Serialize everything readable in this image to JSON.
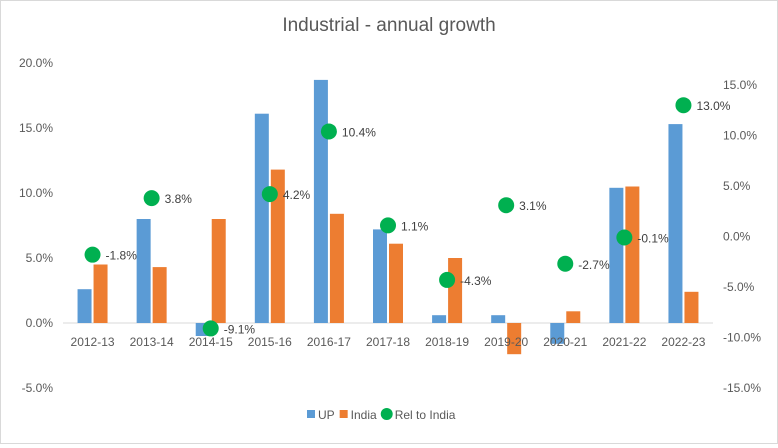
{
  "chart_data": {
    "type": "bar",
    "title": "Industrial - annual growth",
    "xlabel": "",
    "ylabel": "",
    "categories": [
      "2012-13",
      "2013-14",
      "2014-15",
      "2015-16",
      "2016-17",
      "2017-18",
      "2018-19",
      "2019-20",
      "2020-21",
      "2021-22",
      "2022-23"
    ],
    "series": [
      {
        "name": "UP",
        "type": "bar",
        "axis": "left",
        "color": "#5b9bd5",
        "values": [
          2.6,
          8.0,
          -1.0,
          16.1,
          18.7,
          7.2,
          0.6,
          0.6,
          -1.6,
          10.4,
          15.3
        ]
      },
      {
        "name": "India",
        "type": "bar",
        "axis": "left",
        "color": "#ed7d31",
        "values": [
          4.5,
          4.3,
          8.0,
          11.8,
          8.4,
          6.1,
          5.0,
          -2.4,
          0.9,
          10.5,
          2.4
        ]
      },
      {
        "name": "Rel to India",
        "type": "scatter",
        "axis": "right",
        "color": "#00b050",
        "values": [
          -1.8,
          3.8,
          -9.1,
          4.2,
          10.4,
          1.1,
          -4.3,
          3.1,
          -2.7,
          -0.1,
          13.0
        ],
        "labels": [
          "-1.8%",
          "3.8%",
          "-9.1%",
          "4.2%",
          "10.4%",
          "1.1%",
          "-4.3%",
          "3.1%",
          "-2.7%",
          "-0.1%",
          "13.0%"
        ]
      }
    ],
    "left_axis": {
      "min": -5,
      "max": 20,
      "step": 5,
      "tick_labels": [
        "20.0%",
        "15.0%",
        "10.0%",
        "5.0%",
        "0.0%",
        "-5.0%"
      ]
    },
    "right_axis": {
      "min": -15,
      "max": 15,
      "step": 5,
      "tick_labels": [
        "15.0%",
        "10.0%",
        "5.0%",
        "0.0%",
        "-5.0%",
        "-10.0%",
        "-15.0%"
      ]
    },
    "grid": false,
    "legend": {
      "position": "bottom",
      "entries": [
        "UP",
        "India",
        "Rel to India"
      ]
    }
  }
}
